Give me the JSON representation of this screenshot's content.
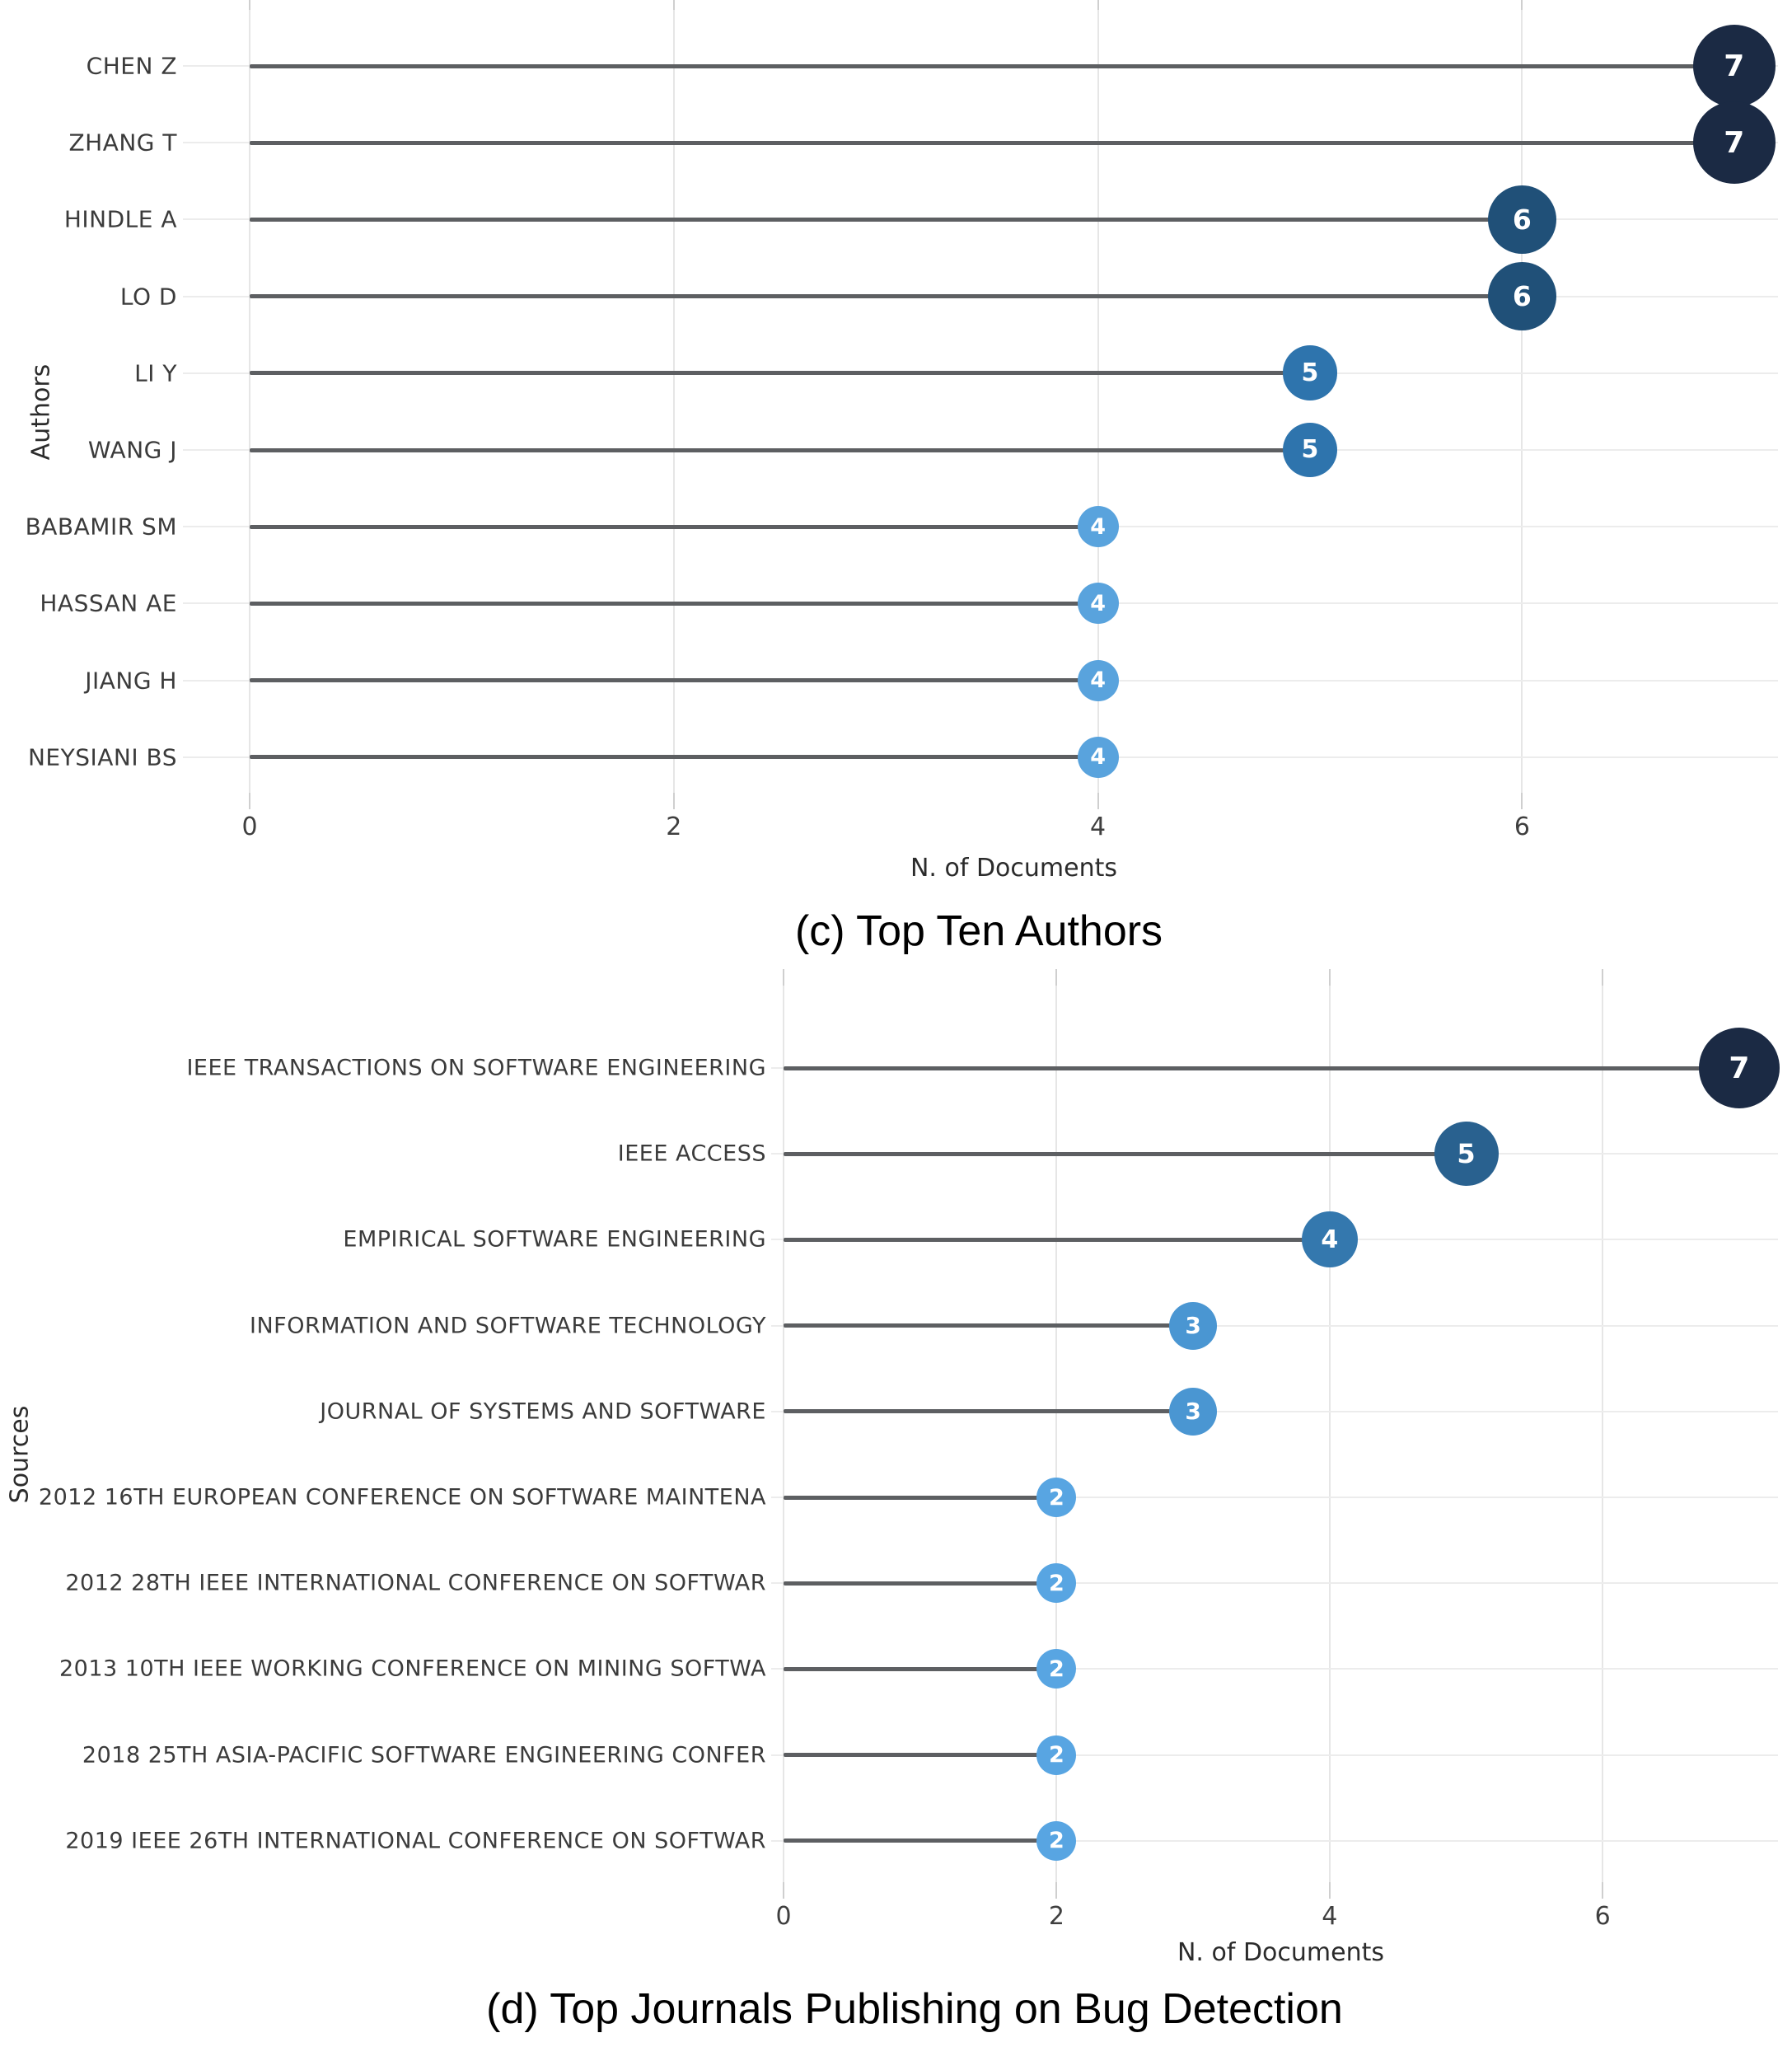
{
  "chart_data": [
    {
      "id": "top-authors",
      "type": "lollipop",
      "caption": "(c) Top Ten Authors",
      "xlabel": "N. of Documents",
      "ylabel": "Authors",
      "xlim": [
        0,
        7.2
      ],
      "xticks": [
        "0",
        "2",
        "4",
        "6"
      ],
      "grid": true,
      "legend": "none",
      "categories": [
        "CHEN Z",
        "ZHANG T",
        "HINDLE A",
        "LO D",
        "LI Y",
        "WANG J",
        "BABAMIR SM",
        "HASSAN AE",
        "JIANG H",
        "NEYSIANI BS"
      ],
      "values": [
        7,
        7,
        6,
        6,
        5,
        5,
        4,
        4,
        4,
        4
      ],
      "point_colors": {
        "4": "#59a3dd",
        "5": "#2e74ad",
        "6": "#205078",
        "7": "#1b2a44"
      }
    },
    {
      "id": "top-sources",
      "type": "lollipop",
      "caption": "(d) Top Journals Publishing on Bug Detection",
      "xlabel": "N. of Documents",
      "ylabel": "Sources",
      "xlim": [
        0,
        7.3
      ],
      "xticks": [
        "0",
        "2",
        "4",
        "6"
      ],
      "grid": true,
      "legend": "none",
      "categories": [
        "IEEE TRANSACTIONS ON SOFTWARE ENGINEERING",
        "IEEE ACCESS",
        "EMPIRICAL SOFTWARE ENGINEERING",
        "INFORMATION AND SOFTWARE TECHNOLOGY",
        "JOURNAL OF SYSTEMS AND SOFTWARE",
        "2012 16TH EUROPEAN CONFERENCE ON SOFTWARE MAINTENA",
        "2012 28TH IEEE INTERNATIONAL CONFERENCE ON SOFTWAR",
        "2013 10TH IEEE WORKING CONFERENCE ON MINING SOFTWA",
        "2018 25TH ASIA-PACIFIC SOFTWARE ENGINEERING CONFER",
        "2019 IEEE 26TH INTERNATIONAL CONFERENCE ON SOFTWAR"
      ],
      "values": [
        7,
        5,
        4,
        3,
        3,
        2,
        2,
        2,
        2,
        2
      ],
      "point_colors": {
        "2": "#58a5e2",
        "3": "#4a96d2",
        "4": "#3478ae",
        "5": "#29618f",
        "7": "#1b2a44"
      }
    }
  ]
}
